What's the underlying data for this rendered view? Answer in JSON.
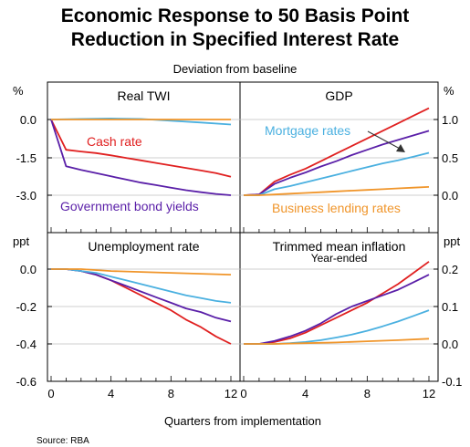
{
  "title_line1": "Economic Response to 50 Basis Point",
  "title_line2": "Reduction in Specified Interest Rate",
  "subtitle": "Deviation from baseline",
  "source": "Source:   RBA",
  "colors": {
    "cash_rate": "#e02020",
    "government_bond_yields": "#5a1fa8",
    "mortgage_rates": "#4ab0e0",
    "business_lending_rates": "#f0952a"
  },
  "chart_data": [
    {
      "type": "line",
      "panel": "top-left",
      "title": "Real TWI",
      "ylabel": "%",
      "ylim": [
        -3.0,
        1.0
      ],
      "yticks": [
        "0.0",
        "-1.5",
        "-3.0"
      ],
      "xlim": [
        0,
        12
      ],
      "labels": [
        {
          "text": "Cash rate",
          "series": "Cash rate"
        },
        {
          "text": "Government bond yields",
          "series": "Government bond yields"
        }
      ],
      "series": [
        {
          "name": "Cash rate",
          "color": "#e02020",
          "x": [
            0,
            1,
            2,
            3,
            4,
            5,
            6,
            7,
            8,
            9,
            10,
            11,
            12
          ],
          "values": [
            0,
            -1.2,
            -1.27,
            -1.33,
            -1.42,
            -1.52,
            -1.62,
            -1.72,
            -1.82,
            -1.92,
            -2.02,
            -2.12,
            -2.27
          ]
        },
        {
          "name": "Government bond yields",
          "color": "#5a1fa8",
          "x": [
            0,
            1,
            2,
            3,
            4,
            5,
            6,
            7,
            8,
            9,
            10,
            11,
            12
          ],
          "values": [
            0,
            -1.85,
            -2.0,
            -2.12,
            -2.25,
            -2.38,
            -2.5,
            -2.6,
            -2.7,
            -2.8,
            -2.88,
            -2.95,
            -3.0
          ]
        },
        {
          "name": "Mortgage rates",
          "color": "#4ab0e0",
          "x": [
            0,
            2,
            4,
            6,
            8,
            10,
            12
          ],
          "values": [
            0,
            0.02,
            0.04,
            0.02,
            -0.05,
            -0.12,
            -0.2
          ]
        },
        {
          "name": "Business lending rates",
          "color": "#f0952a",
          "x": [
            0,
            4,
            8,
            12
          ],
          "values": [
            0,
            0,
            0,
            0
          ]
        }
      ]
    },
    {
      "type": "line",
      "panel": "top-right",
      "title": "GDP",
      "ylabel": "%",
      "ylim": [
        0.0,
        1.25
      ],
      "yticks": [
        "1.0",
        "0.5",
        "0.0"
      ],
      "xlim": [
        0,
        12
      ],
      "labels": [
        {
          "text": "Mortgage rates",
          "series": "Mortgage rates"
        },
        {
          "text": "Business lending rates",
          "series": "Business lending rates"
        }
      ],
      "series": [
        {
          "name": "Cash rate",
          "color": "#e02020",
          "x": [
            0,
            1,
            2,
            3,
            4,
            5,
            6,
            7,
            8,
            9,
            10,
            11,
            12
          ],
          "values": [
            0,
            0.01,
            0.18,
            0.27,
            0.35,
            0.45,
            0.55,
            0.65,
            0.75,
            0.85,
            0.95,
            1.05,
            1.15
          ]
        },
        {
          "name": "Government bond yields",
          "color": "#5a1fa8",
          "x": [
            0,
            1,
            2,
            3,
            4,
            5,
            6,
            7,
            8,
            9,
            10,
            11,
            12
          ],
          "values": [
            0,
            0.01,
            0.15,
            0.23,
            0.3,
            0.38,
            0.45,
            0.53,
            0.6,
            0.67,
            0.73,
            0.79,
            0.85
          ]
        },
        {
          "name": "Mortgage rates",
          "color": "#4ab0e0",
          "x": [
            0,
            1,
            2,
            3,
            4,
            5,
            6,
            7,
            8,
            9,
            10,
            11,
            12
          ],
          "values": [
            0,
            0.0,
            0.08,
            0.12,
            0.17,
            0.22,
            0.27,
            0.32,
            0.37,
            0.42,
            0.46,
            0.51,
            0.56
          ]
        },
        {
          "name": "Business lending rates",
          "color": "#f0952a",
          "x": [
            0,
            1,
            2,
            3,
            4,
            5,
            6,
            7,
            8,
            9,
            10,
            11,
            12
          ],
          "values": [
            0,
            0.0,
            0.01,
            0.02,
            0.03,
            0.04,
            0.05,
            0.06,
            0.07,
            0.08,
            0.09,
            0.1,
            0.11
          ]
        }
      ]
    },
    {
      "type": "line",
      "panel": "bottom-left",
      "title": "Unemployment rate",
      "ylabel": "ppt",
      "ylim": [
        -0.6,
        0.1
      ],
      "yticks": [
        "0.0",
        "-0.2",
        "-0.4",
        "-0.6"
      ],
      "xlim": [
        0,
        12
      ],
      "series": [
        {
          "name": "Cash rate",
          "color": "#e02020",
          "x": [
            0,
            1,
            2,
            3,
            4,
            5,
            6,
            7,
            8,
            9,
            10,
            11,
            12
          ],
          "values": [
            0,
            0,
            -0.01,
            -0.03,
            -0.06,
            -0.1,
            -0.14,
            -0.18,
            -0.22,
            -0.27,
            -0.31,
            -0.36,
            -0.4
          ]
        },
        {
          "name": "Government bond yields",
          "color": "#5a1fa8",
          "x": [
            0,
            1,
            2,
            3,
            4,
            5,
            6,
            7,
            8,
            9,
            10,
            11,
            12
          ],
          "values": [
            0,
            0,
            -0.01,
            -0.03,
            -0.06,
            -0.09,
            -0.12,
            -0.15,
            -0.18,
            -0.21,
            -0.23,
            -0.26,
            -0.28
          ]
        },
        {
          "name": "Mortgage rates",
          "color": "#4ab0e0",
          "x": [
            0,
            1,
            2,
            3,
            4,
            5,
            6,
            7,
            8,
            9,
            10,
            11,
            12
          ],
          "values": [
            0,
            0,
            -0.01,
            -0.02,
            -0.04,
            -0.06,
            -0.08,
            -0.1,
            -0.12,
            -0.14,
            -0.155,
            -0.17,
            -0.18
          ]
        },
        {
          "name": "Business lending rates",
          "color": "#f0952a",
          "x": [
            0,
            2,
            4,
            6,
            8,
            10,
            12
          ],
          "values": [
            0,
            0,
            -0.01,
            -0.015,
            -0.02,
            -0.025,
            -0.03
          ]
        }
      ]
    },
    {
      "type": "line",
      "panel": "bottom-right",
      "title": "Trimmed mean inflation",
      "subtitle": "Year-ended",
      "ylabel": "ppt",
      "ylim": [
        -0.1,
        0.25
      ],
      "yticks": [
        "0.2",
        "0.1",
        "0.0",
        "-0.1"
      ],
      "xlim": [
        0,
        12
      ],
      "series": [
        {
          "name": "Cash rate",
          "color": "#e02020",
          "x": [
            0,
            1,
            2,
            3,
            4,
            5,
            6,
            7,
            8,
            9,
            10,
            11,
            12
          ],
          "values": [
            0,
            0,
            0.005,
            0.015,
            0.03,
            0.05,
            0.07,
            0.09,
            0.11,
            0.135,
            0.16,
            0.19,
            0.22
          ]
        },
        {
          "name": "Government bond yields",
          "color": "#5a1fa8",
          "x": [
            0,
            1,
            2,
            3,
            4,
            5,
            6,
            7,
            8,
            9,
            10,
            11,
            12
          ],
          "values": [
            0,
            0,
            0.008,
            0.02,
            0.035,
            0.055,
            0.08,
            0.1,
            0.115,
            0.13,
            0.145,
            0.165,
            0.185
          ]
        },
        {
          "name": "Mortgage rates",
          "color": "#4ab0e0",
          "x": [
            0,
            1,
            2,
            3,
            4,
            5,
            6,
            7,
            8,
            9,
            10,
            11,
            12
          ],
          "values": [
            0,
            0,
            0,
            0.002,
            0.005,
            0.01,
            0.017,
            0.025,
            0.035,
            0.047,
            0.06,
            0.075,
            0.09
          ]
        },
        {
          "name": "Business lending rates",
          "color": "#f0952a",
          "x": [
            0,
            2,
            4,
            6,
            8,
            10,
            12
          ],
          "values": [
            0,
            0,
            0.002,
            0.004,
            0.007,
            0.01,
            0.014
          ]
        }
      ]
    }
  ],
  "x_axis": {
    "label": "Quarters from implementation",
    "ticks": [
      "0",
      "4",
      "8",
      "12",
      "0",
      "4",
      "8",
      "12"
    ]
  }
}
